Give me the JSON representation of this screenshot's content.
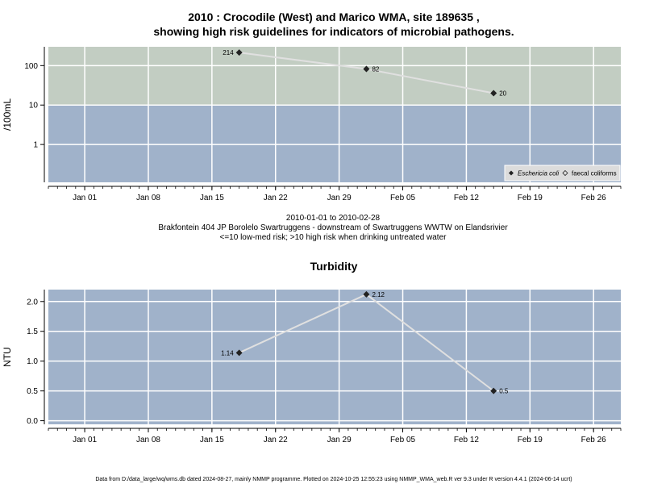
{
  "main_title_line1": "2010 : Crocodile (West) and Marico WMA, site 189635 ,",
  "main_title_line2": "showing high risk guidelines for indicators of microbial pathogens.",
  "subtitle_lines": [
    "2010-01-01 to 2010-02-28",
    "Brakfontein 404 JP Borolelo Swartruggens - downstream of Swartruggens WWTW on Elandsrivier",
    "<=10 low-med risk; >10 high risk when drinking untreated water"
  ],
  "footer": "Data from D:/data_large/wq/wms.db dated 2024-08-27, mainly NMMP programme. Plotted on 2024-10-25 12:55:23 using NMMP_WMA_web.R ver 9.3 under R version 4.4.1 (2024-06-14 ucrt)",
  "colors": {
    "high_risk_band": "#c2cdc2",
    "low_risk_band": "#a0b2ca",
    "grid": "#ffffff",
    "line": "#e0e0e0",
    "point": "#222222"
  },
  "chart_data": [
    {
      "type": "line",
      "title": "",
      "ylabel": "/100mL",
      "yscale": "log",
      "yticks": [
        1,
        10,
        100
      ],
      "ytick_labels": [
        "1",
        "10",
        "100"
      ],
      "ylim": [
        0.11,
        300
      ],
      "xlim": [
        "2009-12-28",
        "2010-03-01"
      ],
      "xticks": [
        "2010-01-01",
        "2010-01-08",
        "2010-01-15",
        "2010-01-22",
        "2010-01-29",
        "2010-02-05",
        "2010-02-12",
        "2010-02-19",
        "2010-02-26"
      ],
      "xtick_labels": [
        "Jan 01",
        "Jan 08",
        "Jan 15",
        "Jan 22",
        "Jan 29",
        "Feb 05",
        "Feb 12",
        "Feb 19",
        "Feb 26"
      ],
      "threshold": 10,
      "grid": true,
      "legend": {
        "placement": "bottom-right",
        "entries": [
          {
            "label": "Eschericia coli",
            "marker": "filled-diamond",
            "italic": true
          },
          {
            "label": "faecal coliforms",
            "marker": "open-diamond",
            "italic": false
          }
        ]
      },
      "series": [
        {
          "name": "Eschericia coli",
          "points": [
            {
              "x": "2010-01-18",
              "y": 214,
              "label": "214",
              "label_side": "left"
            },
            {
              "x": "2010-02-01",
              "y": 82,
              "label": "82",
              "label_side": "right"
            },
            {
              "x": "2010-02-15",
              "y": 20,
              "label": "20",
              "label_side": "right"
            }
          ]
        }
      ]
    },
    {
      "type": "line",
      "title": "Turbidity",
      "ylabel": "NTU",
      "yscale": "linear",
      "yticks": [
        0,
        0.5,
        1,
        1.5,
        2
      ],
      "ytick_labels": [
        "0.0",
        "0.5",
        "1.0",
        "1.5",
        "2.0"
      ],
      "ylim": [
        -0.06,
        2.2
      ],
      "xlim": [
        "2009-12-28",
        "2010-03-01"
      ],
      "xticks": [
        "2010-01-01",
        "2010-01-08",
        "2010-01-15",
        "2010-01-22",
        "2010-01-29",
        "2010-02-05",
        "2010-02-12",
        "2010-02-19",
        "2010-02-26"
      ],
      "xtick_labels": [
        "Jan 01",
        "Jan 08",
        "Jan 15",
        "Jan 22",
        "Jan 29",
        "Feb 05",
        "Feb 12",
        "Feb 19",
        "Feb 26"
      ],
      "grid": true,
      "series": [
        {
          "name": "Turbidity",
          "points": [
            {
              "x": "2010-01-18",
              "y": 1.14,
              "label": "1.14",
              "label_side": "left"
            },
            {
              "x": "2010-02-01",
              "y": 2.12,
              "label": "2.12",
              "label_side": "right"
            },
            {
              "x": "2010-02-15",
              "y": 0.5,
              "label": "0.5",
              "label_side": "right"
            }
          ]
        }
      ]
    }
  ]
}
